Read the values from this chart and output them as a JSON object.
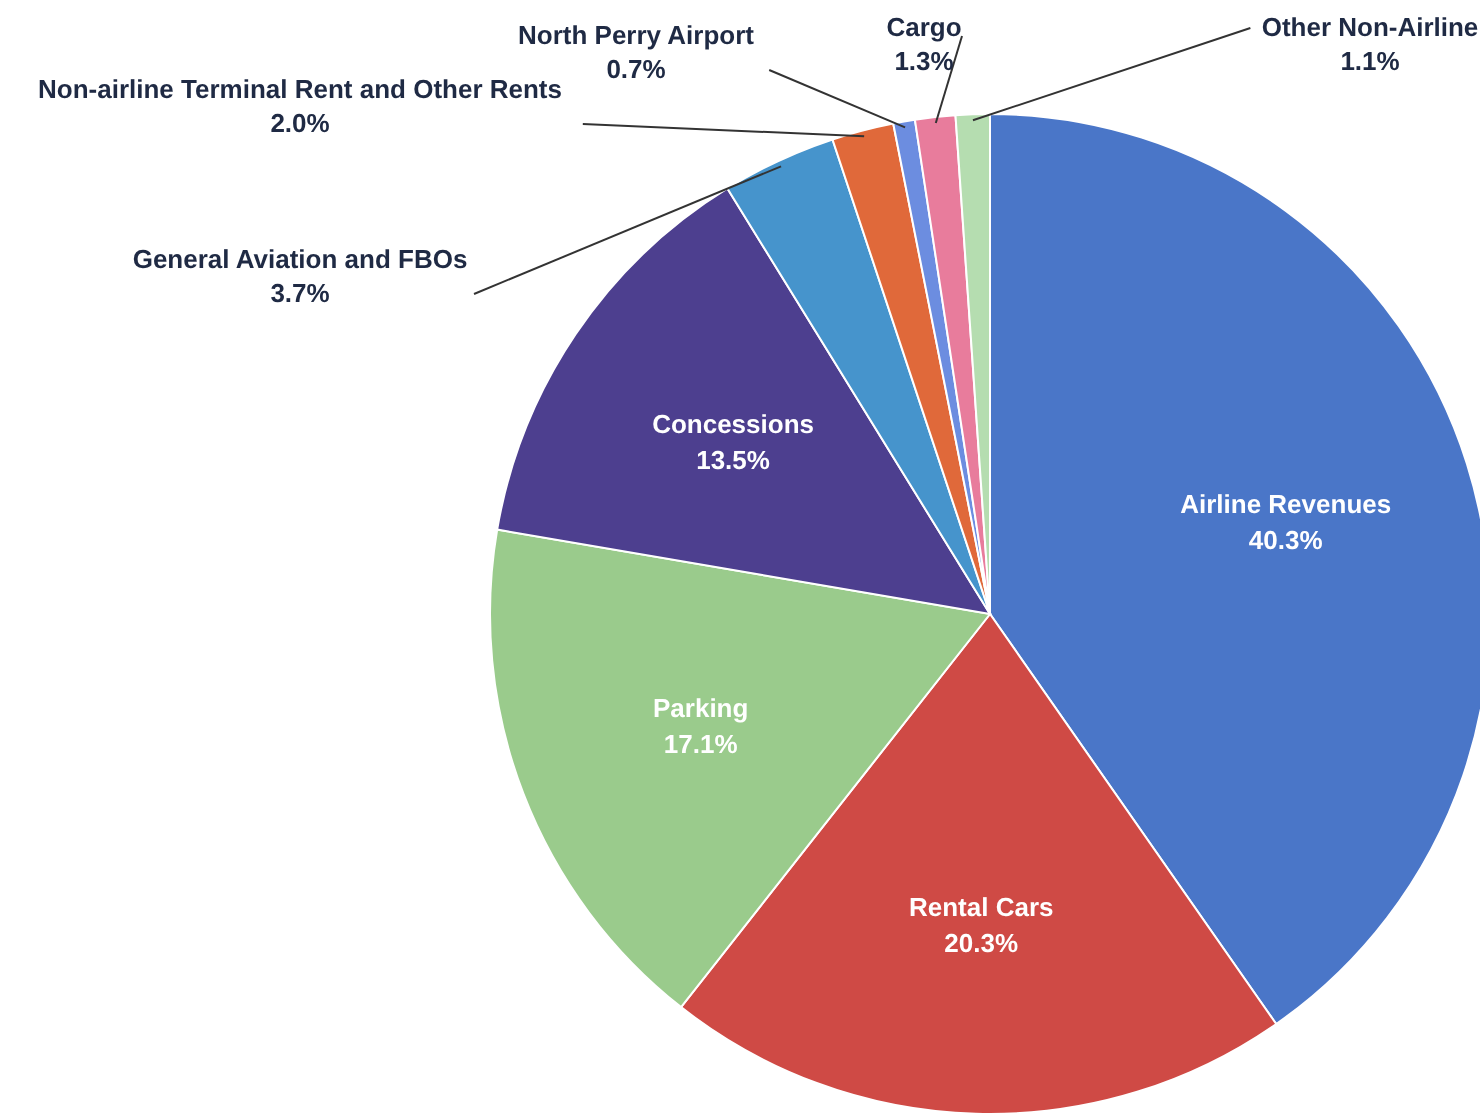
{
  "chart_data": {
    "type": "pie",
    "categories": [
      "Airline Revenues",
      "Rental Cars",
      "Parking",
      "Concessions",
      "General Aviation and FBOs",
      "Non-airline Terminal Rent and Other Rents",
      "North Perry Airport",
      "Cargo",
      "Other Non-Airline"
    ],
    "values": [
      40.3,
      20.3,
      17.1,
      13.5,
      3.7,
      2.0,
      0.7,
      1.3,
      1.1
    ],
    "value_labels": [
      "40.3%",
      "20.3%",
      "17.1%",
      "13.5%",
      "3.7%",
      "2.0%",
      "0.7%",
      "1.3%",
      "1.1%"
    ],
    "colors": [
      "#4a76c8",
      "#cf4a45",
      "#9acb8c",
      "#4d3f8f",
      "#4694cc",
      "#e0693a",
      "#6c8de0",
      "#e87c9c",
      "#b5ddb0"
    ]
  }
}
